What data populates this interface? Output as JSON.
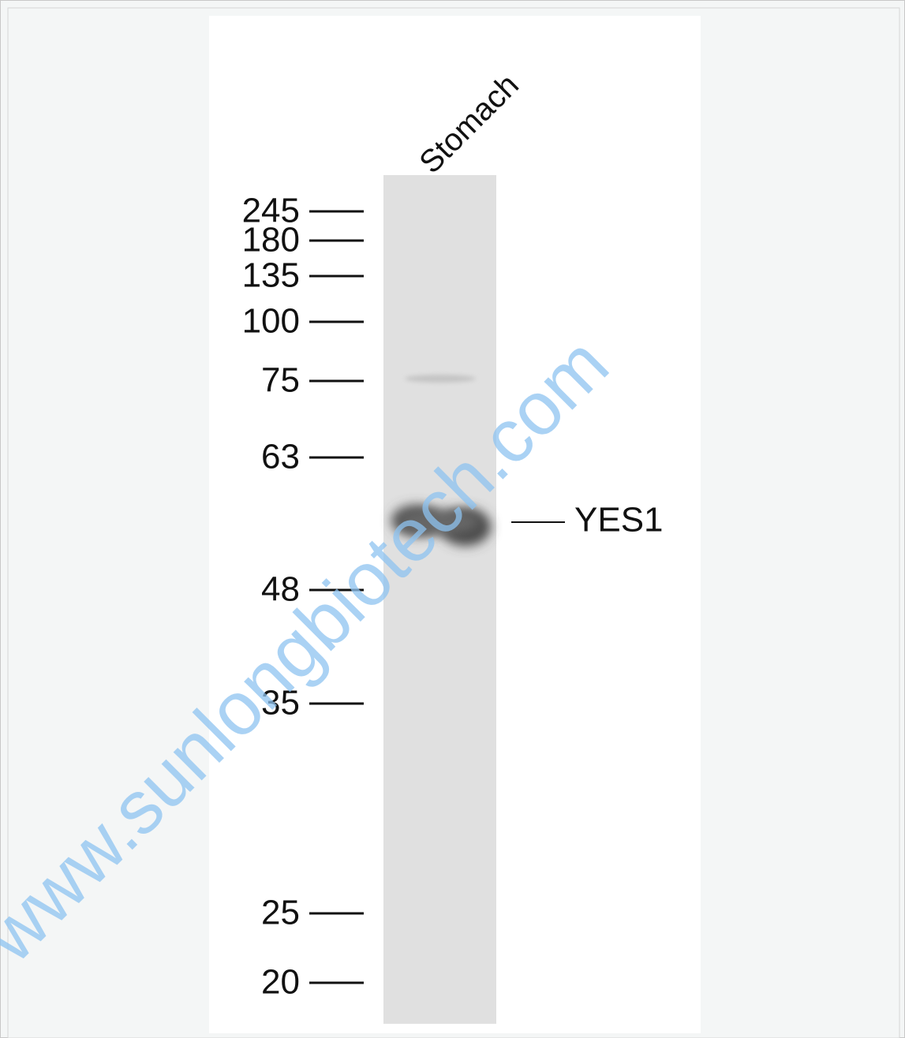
{
  "lane_label": "Stomach",
  "markers": [
    "245",
    "180",
    "135",
    "100",
    "75",
    "63",
    "48",
    "35",
    "25",
    "20"
  ],
  "band_label": "YES1",
  "watermark": "www.sunlongbiotech.com"
}
